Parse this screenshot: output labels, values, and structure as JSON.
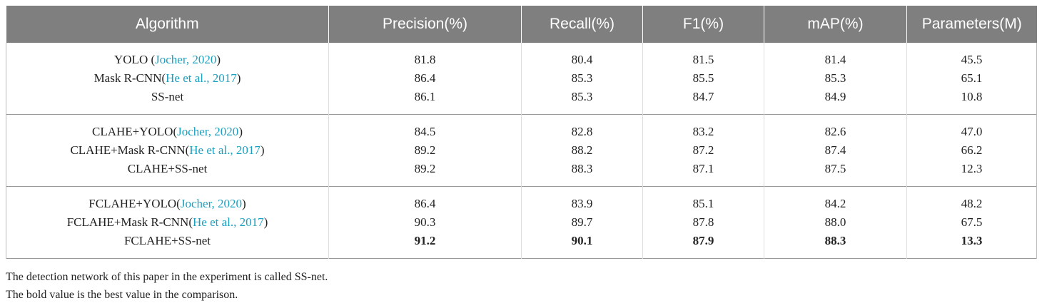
{
  "table": {
    "header": [
      "Algorithm",
      "Precision(%)",
      "Recall(%)",
      "F1(%)",
      "mAP(%)",
      "Parameters(M)"
    ],
    "groups": [
      {
        "rows": [
          {
            "algorithm": {
              "name": "YOLO (",
              "cite": "Jocher, 2020",
              "close": ")"
            },
            "values": [
              "81.8",
              "80.4",
              "81.5",
              "81.4",
              "45.5"
            ]
          },
          {
            "algorithm": {
              "name": "Mask R-CNN(",
              "cite": "He et al., 2017",
              "close": ")"
            },
            "values": [
              "86.4",
              "85.3",
              "85.5",
              "85.3",
              "65.1"
            ]
          },
          {
            "algorithm": {
              "name": "SS-net"
            },
            "values": [
              "86.1",
              "85.3",
              "84.7",
              "84.9",
              "10.8"
            ]
          }
        ]
      },
      {
        "rows": [
          {
            "algorithm": {
              "name": "CLAHE+YOLO(",
              "cite": "Jocher, 2020",
              "close": ")"
            },
            "values": [
              "84.5",
              "82.8",
              "83.2",
              "82.6",
              "47.0"
            ]
          },
          {
            "algorithm": {
              "name": "CLAHE+Mask R-CNN(",
              "cite": "He et al., 2017",
              "close": ")"
            },
            "values": [
              "89.2",
              "88.2",
              "87.2",
              "87.4",
              "66.2"
            ]
          },
          {
            "algorithm": {
              "name": "CLAHE+SS-net"
            },
            "values": [
              "89.2",
              "88.3",
              "87.1",
              "87.5",
              "12.3"
            ]
          }
        ]
      },
      {
        "rows": [
          {
            "algorithm": {
              "name": "FCLAHE+YOLO(",
              "cite": "Jocher, 2020",
              "close": ")"
            },
            "values": [
              "86.4",
              "83.9",
              "85.1",
              "84.2",
              "48.2"
            ]
          },
          {
            "algorithm": {
              "name": "FCLAHE+Mask R-CNN(",
              "cite": "He et al., 2017",
              "close": ")"
            },
            "values": [
              "90.3",
              "89.7",
              "87.8",
              "88.0",
              "67.5"
            ]
          },
          {
            "algorithm": {
              "name": "FCLAHE+SS-net"
            },
            "values": [
              "91.2",
              "90.1",
              "87.9",
              "88.3",
              "13.3"
            ],
            "bold": true
          }
        ]
      }
    ]
  },
  "footnotes": [
    "The detection network of this paper in the experiment is called SS-net.",
    "The bold value is the best value in the comparison."
  ]
}
